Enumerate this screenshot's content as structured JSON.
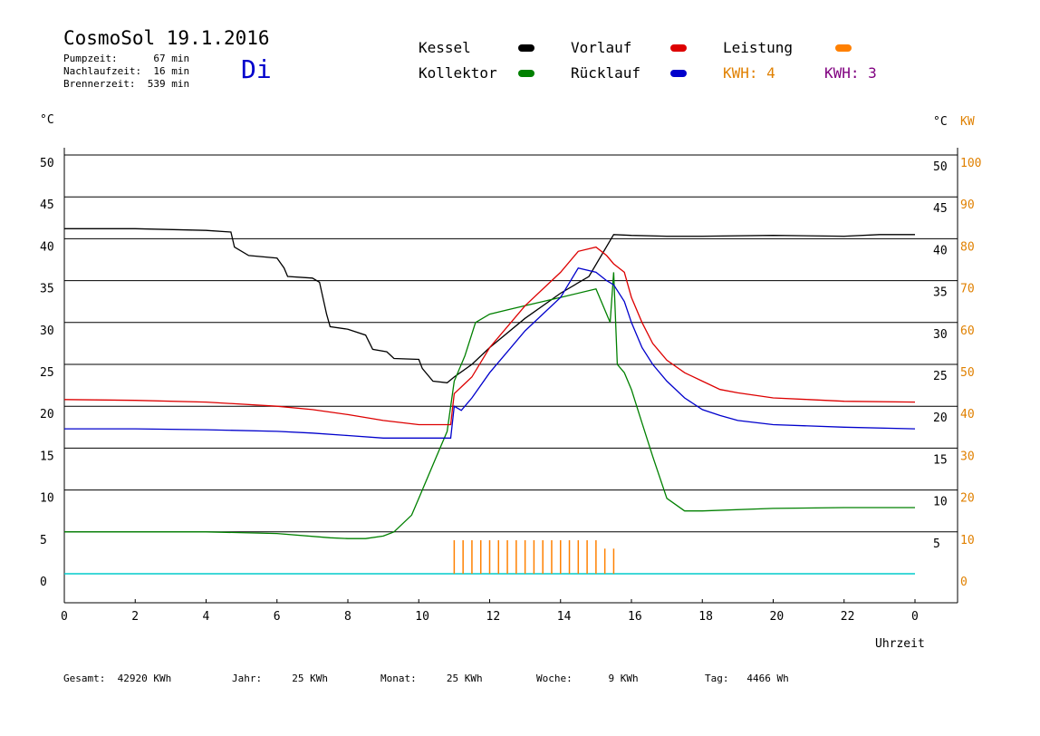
{
  "header": {
    "title": "CosmoSol 19.1.2016",
    "day": "Di",
    "pumpzeit": "Pumpzeit:      67 min",
    "nachlaufzeit": "Nachlaufzeit:  16 min",
    "brennerzeit": "Brennerzeit:  539 min"
  },
  "legend": {
    "kessel": "Kessel",
    "kollektor": "Kollektor",
    "vorlauf": "Vorlauf",
    "ruecklauf": "Rücklauf",
    "leistung": "Leistung",
    "kwh_orange": "KWH: 4",
    "kwh_purple": "KWH: 3"
  },
  "colors": {
    "kessel": "#000000",
    "kollektor": "#008000",
    "vorlauf": "#dd0000",
    "ruecklauf": "#0000cc",
    "leistung": "#ff8000",
    "kwh_purple": "#800080",
    "axis_kw": "#e08000",
    "baseline": "#00cccc"
  },
  "footer": {
    "gesamt": "Gesamt:  42920 KWh",
    "jahr": "Jahr:     25 KWh",
    "monat": "Monat:     25 KWh",
    "woche": "Woche:      9 KWh",
    "tag": "Tag:   4466 Wh"
  },
  "chart_data": {
    "type": "line",
    "xlabel": "Uhrzeit",
    "ylabel_left": "°C",
    "ylabel_right": "°C",
    "ylabel_kw": "KW",
    "xlim": [
      0,
      24
    ],
    "ylim": [
      0,
      50
    ],
    "ylim_kw": [
      0,
      100
    ],
    "x_ticks": [
      "0",
      "2",
      "4",
      "6",
      "8",
      "10",
      "12",
      "14",
      "16",
      "18",
      "20",
      "22",
      "0"
    ],
    "y_ticks": [
      "0",
      "5",
      "10",
      "15",
      "20",
      "25",
      "30",
      "35",
      "40",
      "45",
      "50"
    ],
    "y_ticks_right": [
      "5",
      "10",
      "15",
      "20",
      "25",
      "30",
      "35",
      "40",
      "45",
      "50"
    ],
    "kw_ticks": [
      "0",
      "10",
      "20",
      "30",
      "40",
      "50",
      "60",
      "70",
      "80",
      "90",
      "100"
    ],
    "grid": true,
    "series": [
      {
        "name": "Kessel",
        "key": "kessel",
        "x": [
          0,
          2,
          4,
          4.7,
          4.8,
          5.2,
          6,
          6.2,
          6.3,
          7,
          7.2,
          7.4,
          7.5,
          8,
          8.5,
          8.7,
          9.1,
          9.3,
          10,
          10.1,
          10.4,
          10.8,
          11,
          11.5,
          12,
          13,
          14,
          14.8,
          15.5,
          16,
          17,
          18,
          20,
          22,
          23,
          24
        ],
        "y": [
          41.2,
          41.2,
          41,
          40.8,
          39,
          38,
          37.7,
          36.5,
          35.5,
          35.3,
          34.8,
          31,
          29.5,
          29.2,
          28.5,
          26.8,
          26.5,
          25.7,
          25.6,
          24.5,
          23,
          22.8,
          23.5,
          25,
          27,
          30.5,
          33.5,
          35.5,
          40.5,
          40.4,
          40.3,
          40.3,
          40.4,
          40.3,
          40.5,
          40.5
        ]
      },
      {
        "name": "Kollektor",
        "key": "kollektor",
        "x": [
          0,
          2,
          4,
          6,
          7.5,
          8,
          8.5,
          9,
          9.3,
          9.8,
          10,
          10.5,
          10.8,
          11,
          11.3,
          11.6,
          12,
          12.5,
          13,
          14,
          15,
          15.4,
          15.5,
          15.6,
          15.8,
          16,
          16.3,
          16.6,
          17,
          17.5,
          18,
          20,
          22,
          24
        ],
        "y": [
          5,
          5,
          5,
          4.8,
          4.3,
          4.2,
          4.2,
          4.5,
          5,
          7,
          9,
          14,
          17,
          23,
          26,
          30,
          31,
          31.5,
          32,
          33,
          34,
          30,
          36,
          25,
          24,
          22,
          18,
          14,
          9,
          7.5,
          7.5,
          7.8,
          7.9,
          7.9
        ]
      },
      {
        "name": "Vorlauf",
        "key": "vorlauf",
        "x": [
          0,
          2,
          4,
          6,
          7,
          8,
          9,
          10,
          10.9,
          11,
          11.5,
          12,
          13,
          14,
          14.5,
          15,
          15.3,
          15.5,
          15.8,
          16,
          16.3,
          16.6,
          17,
          17.5,
          18,
          18.5,
          19,
          20,
          21,
          22,
          24
        ],
        "y": [
          20.8,
          20.7,
          20.5,
          20,
          19.6,
          19,
          18.3,
          17.8,
          17.8,
          21.5,
          23.5,
          27,
          32,
          36,
          38.5,
          39,
          38,
          37,
          36,
          33,
          30,
          27.5,
          25.5,
          24,
          23,
          22,
          21.6,
          21,
          20.8,
          20.6,
          20.5
        ]
      },
      {
        "name": "Rücklauf",
        "key": "ruecklauf",
        "x": [
          0,
          2,
          4,
          6,
          7,
          8,
          9,
          10,
          10.9,
          11,
          11.2,
          11.5,
          12,
          13,
          14,
          14.5,
          15,
          15.3,
          15.5,
          15.8,
          16,
          16.3,
          16.6,
          17,
          17.5,
          18,
          18.5,
          19,
          20,
          22,
          24
        ],
        "y": [
          17.3,
          17.3,
          17.2,
          17,
          16.8,
          16.5,
          16.2,
          16.2,
          16.2,
          20,
          19.5,
          21,
          24,
          29,
          33,
          36.5,
          36,
          35,
          34.5,
          32.5,
          30,
          27,
          25,
          23,
          21,
          19.6,
          18.9,
          18.3,
          17.8,
          17.5,
          17.3
        ]
      },
      {
        "name": "Leistung",
        "key": "leistung",
        "x": [
          11.0,
          11.25,
          11.5,
          11.75,
          12.0,
          12.25,
          12.5,
          12.75,
          13.0,
          13.25,
          13.5,
          13.75,
          14.0,
          14.25,
          14.5,
          14.75,
          15.0,
          15.25,
          15.5
        ],
        "y": [
          8,
          8,
          8,
          8,
          8,
          8,
          8,
          8,
          8,
          8,
          8,
          8,
          8,
          8,
          8,
          8,
          8,
          6,
          6
        ]
      }
    ]
  }
}
